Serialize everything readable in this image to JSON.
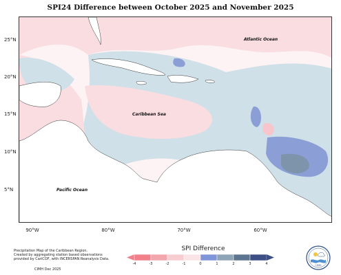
{
  "title": "SPI24 Difference between October 2025 and November 2025",
  "lat_labels": [
    "25°N",
    "20°N",
    "15°N",
    "10°N",
    "5°N"
  ],
  "lon_labels": [
    "90°W",
    "80°W",
    "70°W",
    "60°W"
  ],
  "place_labels": {
    "atlantic": "Atlantic Ocean",
    "caribbean": "Caribbean Sea",
    "pacific": "Pacific Ocean"
  },
  "credit": {
    "line1": "Precipitation Map of the Caribbean Region.",
    "line2": "Created by aggregating station based observations",
    "line3": "provided by CariCOF, with INCERSPAN Reanalysis Data.",
    "line4": "CIMH Dec 2025"
  },
  "colorbar": {
    "title": "SPI Difference",
    "ticks": [
      "-4",
      "-3",
      "-2",
      "-1",
      "0",
      "1",
      "2",
      "3",
      "4"
    ],
    "colors": [
      "#f2808a",
      "#f4a6ad",
      "#f7cdd2",
      "#fbe4e7",
      "#d6e6ec",
      "#7f95d8",
      "#8fa4b6",
      "#5d7590",
      "#3d4f86"
    ]
  },
  "logo_text": "CIMH"
}
